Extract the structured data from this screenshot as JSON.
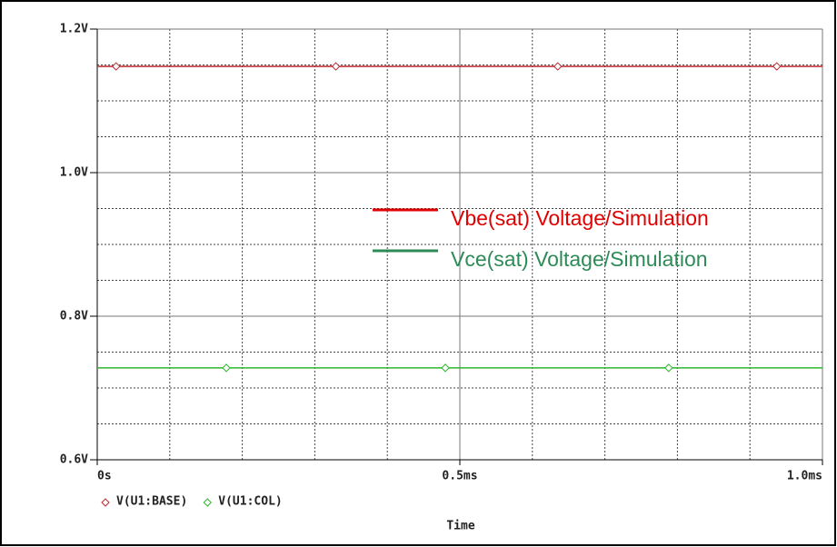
{
  "chart_data": {
    "type": "line",
    "x_label": "Time",
    "xlim": [
      0,
      1.0
    ],
    "xticks": [
      {
        "value": 0,
        "label": "0s"
      },
      {
        "value": 0.5,
        "label": "0.5ms"
      },
      {
        "value": 1.0,
        "label": "1.0ms"
      }
    ],
    "xminorticks": [
      0.1,
      0.2,
      0.3,
      0.4,
      0.6,
      0.7,
      0.8,
      0.9
    ],
    "ylim": [
      0.6,
      1.2
    ],
    "yticks": [
      {
        "value": 0.6,
        "label": "0.6V"
      },
      {
        "value": 0.8,
        "label": "0.8V"
      },
      {
        "value": 1.0,
        "label": "1.0V"
      },
      {
        "value": 1.2,
        "label": "1.2V"
      }
    ],
    "yminorticks": [
      0.65,
      0.7,
      0.75,
      0.85,
      0.9,
      0.95,
      1.05,
      1.1,
      1.15
    ],
    "grid": true,
    "series": [
      {
        "name": "V(U1:BASE)",
        "color": "#c0282d",
        "x": [
          0.026,
          0.329,
          0.635,
          0.937
        ],
        "values": [
          1.148,
          1.148,
          1.148,
          1.148
        ]
      },
      {
        "name": "V(U1:COL)",
        "color": "#2eb82e",
        "x": [
          0.178,
          0.48,
          0.788
        ],
        "values": [
          0.728,
          0.728,
          0.728
        ]
      }
    ],
    "annotations": [
      {
        "text": "Vbe(sat) Voltage/Simulation",
        "color": "#e00000"
      },
      {
        "text": "Vce(sat) Voltage/Simulation",
        "color": "#2e8b57"
      }
    ]
  }
}
